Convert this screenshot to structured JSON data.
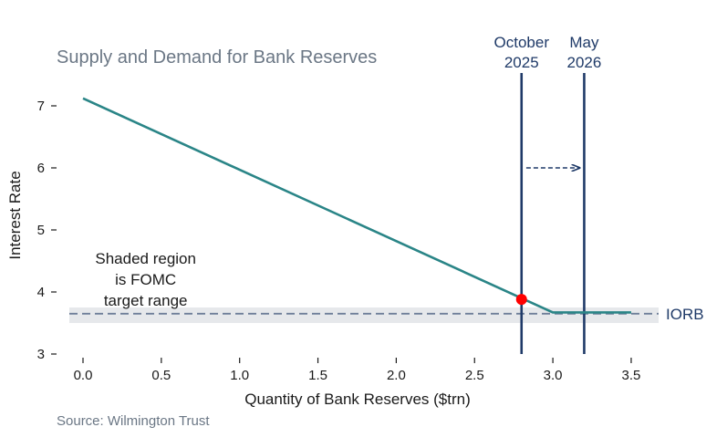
{
  "chart_data": {
    "type": "line",
    "title": "Supply and Demand for Bank Reserves",
    "xlabel": "Quantity of Bank Reserves ($trn)",
    "ylabel": "Interest Rate",
    "xlim": [
      -0.1,
      3.65
    ],
    "ylim": [
      3.0,
      7.4
    ],
    "x_ticks": [
      "0.0",
      "0.5",
      "1.0",
      "1.5",
      "2.0",
      "2.5",
      "3.0",
      "3.5"
    ],
    "y_ticks": [
      "3",
      "4",
      "5",
      "6",
      "7"
    ],
    "grid": false,
    "series": [
      {
        "color": "#2a8587",
        "points": [
          [
            0.0,
            7.12
          ],
          [
            3.0,
            3.67
          ],
          [
            3.5,
            3.67
          ]
        ]
      }
    ],
    "target_range": {
      "low": 3.5,
      "high": 3.75,
      "color": "#e6e8eb"
    },
    "iorb": {
      "value": 3.65,
      "label": "IORB",
      "color": "#6f7f99"
    },
    "vertical_lines": [
      {
        "x": 2.8,
        "label_line1": "October",
        "label_line2": "2025",
        "color": "#1f3a68"
      },
      {
        "x": 3.2,
        "label_line1": "May",
        "label_line2": "2026",
        "color": "#1f3a68"
      }
    ],
    "marker": {
      "x": 2.8,
      "y": 3.88,
      "color": "#ff0000"
    },
    "arrow": {
      "from_x": 2.83,
      "to_x": 3.17,
      "y": 6.0
    },
    "annotation": {
      "lines": [
        "Shaded region",
        "is FOMC",
        "target range"
      ],
      "x": 0.4,
      "y": 4.4
    },
    "source": "Source: Wilmington Trust"
  }
}
